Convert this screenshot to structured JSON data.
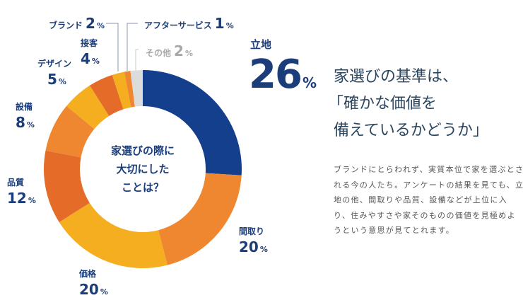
{
  "chart_data": {
    "type": "pie",
    "donut": true,
    "center_label": [
      "家選びの際に",
      "大切にした",
      "ことは？"
    ],
    "unit": "%",
    "slices": [
      {
        "label": "立地",
        "value": 26,
        "color": "#143f8c"
      },
      {
        "label": "間取り",
        "value": 20,
        "color": "#ef8730"
      },
      {
        "label": "価格",
        "value": 20,
        "color": "#f4ae1f"
      },
      {
        "label": "品質",
        "value": 12,
        "color": "#e56b28"
      },
      {
        "label": "設備",
        "value": 8,
        "color": "#ef8730"
      },
      {
        "label": "デザイン",
        "value": 5,
        "color": "#f4ae1f"
      },
      {
        "label": "接客",
        "value": 4,
        "color": "#e56b28"
      },
      {
        "label": "ブランド",
        "value": 2,
        "color": "#f4ae1f"
      },
      {
        "label": "アフターサービス",
        "value": 1,
        "color": "#ef8730"
      },
      {
        "label": "その他",
        "value": 2,
        "color": "#dcdcdc"
      }
    ]
  },
  "headline": [
    "家選びの基準は、",
    "「確かな価値を",
    "備えているかどうか」"
  ],
  "body": "ブランドにとらわれず、実質本位で家を選ぶとされる今の人たち。アンケートの結果を見ても、立地の他、間取りや品質、設備などが上位に入り、住みやすさや家そのものの価値を見極めようという意思が見てとれます。"
}
